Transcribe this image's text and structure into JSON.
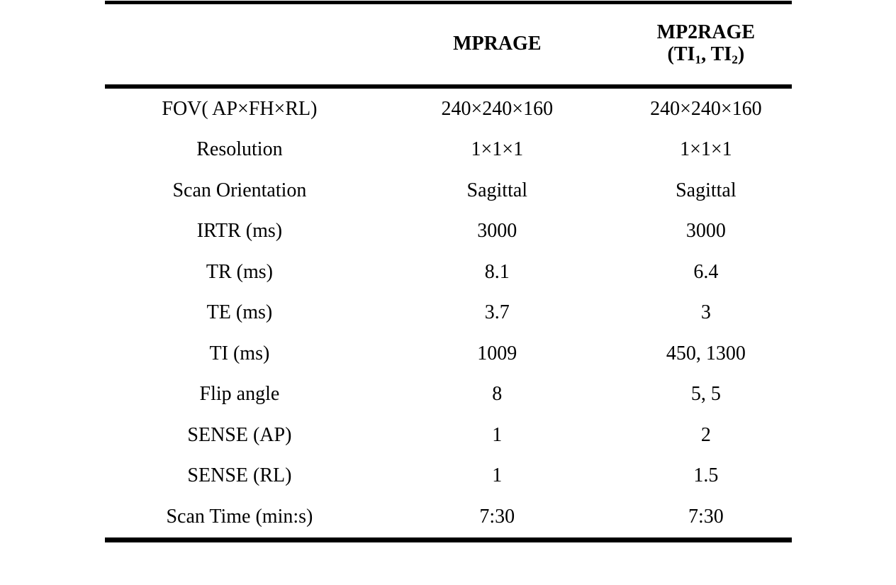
{
  "table": {
    "headers": {
      "corner": "",
      "mprage": "MPRAGE",
      "mp2rage": {
        "line1": "MP2RAGE",
        "line2_pre": "(TI",
        "sub1": "1",
        "line2_mid": ", TI",
        "sub2": "2",
        "line2_close": ")"
      }
    },
    "rows": [
      {
        "label": "FOV( AP×FH×RL)",
        "mprage": "240×240×160",
        "mp2rage": "240×240×160"
      },
      {
        "label": "Resolution",
        "mprage": "1×1×1",
        "mp2rage": "1×1×1"
      },
      {
        "label": "Scan Orientation",
        "mprage": "Sagittal",
        "mp2rage": "Sagittal"
      },
      {
        "label": "IRTR (ms)",
        "mprage": "3000",
        "mp2rage": "3000"
      },
      {
        "label": "TR (ms)",
        "mprage": "8.1",
        "mp2rage": "6.4"
      },
      {
        "label": "TE (ms)",
        "mprage": "3.7",
        "mp2rage": "3"
      },
      {
        "label": "TI (ms)",
        "mprage": "1009",
        "mp2rage": "450, 1300"
      },
      {
        "label": "Flip angle",
        "mprage": "8",
        "mp2rage": "5, 5"
      },
      {
        "label": "SENSE (AP)",
        "mprage": "1",
        "mp2rage": "2"
      },
      {
        "label": "SENSE (RL)",
        "mprage": "1",
        "mp2rage": "1.5"
      },
      {
        "label": "Scan Time (min:s)",
        "mprage": "7:30",
        "mp2rage": "7:30"
      }
    ]
  },
  "chart_data": {
    "type": "table",
    "title": "",
    "columns": [
      "",
      "MPRAGE",
      "MP2RAGE (TI1, TI2)"
    ],
    "rows": [
      [
        "FOV( AP×FH×RL)",
        "240×240×160",
        "240×240×160"
      ],
      [
        "Resolution",
        "1×1×1",
        "1×1×1"
      ],
      [
        "Scan Orientation",
        "Sagittal",
        "Sagittal"
      ],
      [
        "IRTR (ms)",
        "3000",
        "3000"
      ],
      [
        "TR (ms)",
        "8.1",
        "6.4"
      ],
      [
        "TE (ms)",
        "3.7",
        "3"
      ],
      [
        "TI (ms)",
        "1009",
        "450, 1300"
      ],
      [
        "Flip angle",
        "8",
        "5, 5"
      ],
      [
        "SENSE (AP)",
        "1",
        "2"
      ],
      [
        "SENSE (RL)",
        "1",
        "1.5"
      ],
      [
        "Scan Time (min:s)",
        "7:30",
        "7:30"
      ]
    ]
  },
  "colors": {
    "background": "#ffffff",
    "text": "#000000",
    "rule": "#000000"
  }
}
